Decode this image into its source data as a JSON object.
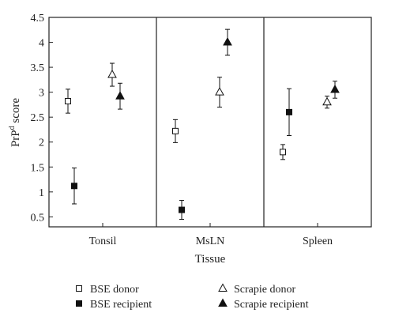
{
  "chart_data": {
    "type": "scatter",
    "xlabel": "Tissue",
    "ylabel": "PrP",
    "ylabel_sup": "d",
    "ylabel_tail": " score",
    "ylim": [
      0.3,
      4.5
    ],
    "yticks": [
      "0.5",
      "1",
      "1.5",
      "2",
      "2.5",
      "3",
      "3.5",
      "4",
      "4.5"
    ],
    "categories": [
      "Tonsil",
      "MsLN",
      "Spleen"
    ],
    "grid": false,
    "legend_position": "bottom",
    "series": [
      {
        "name": "BSE donor",
        "marker": "square-open",
        "values": [
          2.82,
          2.22,
          1.8
        ],
        "err": [
          0.24,
          0.23,
          0.15
        ]
      },
      {
        "name": "BSE recipient",
        "marker": "square-filled",
        "values": [
          1.12,
          0.64,
          2.6
        ],
        "err": [
          0.36,
          0.19,
          0.47
        ]
      },
      {
        "name": "Scrapie donor",
        "marker": "triangle-open",
        "values": [
          3.35,
          3.0,
          2.8
        ],
        "err": [
          0.23,
          0.3,
          0.12
        ]
      },
      {
        "name": "Scrapie recipient",
        "marker": "triangle-filled",
        "values": [
          2.92,
          4.0,
          3.05
        ],
        "err": [
          0.26,
          0.26,
          0.17
        ]
      }
    ]
  }
}
